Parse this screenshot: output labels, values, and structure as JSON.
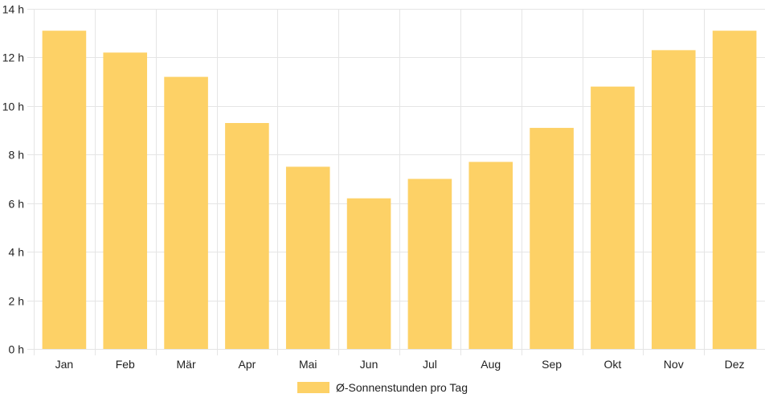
{
  "chart_data": {
    "type": "bar",
    "categories": [
      "Jan",
      "Feb",
      "Mär",
      "Apr",
      "Mai",
      "Jun",
      "Jul",
      "Aug",
      "Sep",
      "Okt",
      "Nov",
      "Dez"
    ],
    "series": [
      {
        "name": "Ø-Sonnenstunden pro Tag",
        "values": [
          13.1,
          12.2,
          11.2,
          9.3,
          7.5,
          6.2,
          7.0,
          7.7,
          9.1,
          10.8,
          12.3,
          13.1
        ]
      }
    ],
    "y_ticks": [
      "0 h",
      "2 h",
      "4 h",
      "6 h",
      "8 h",
      "10 h",
      "12 h",
      "14 h"
    ],
    "ylim": [
      0,
      14
    ],
    "grid": true,
    "legend_position": "bottom",
    "bar_color": "#fdd166",
    "grid_color": "#e5e5e5"
  }
}
